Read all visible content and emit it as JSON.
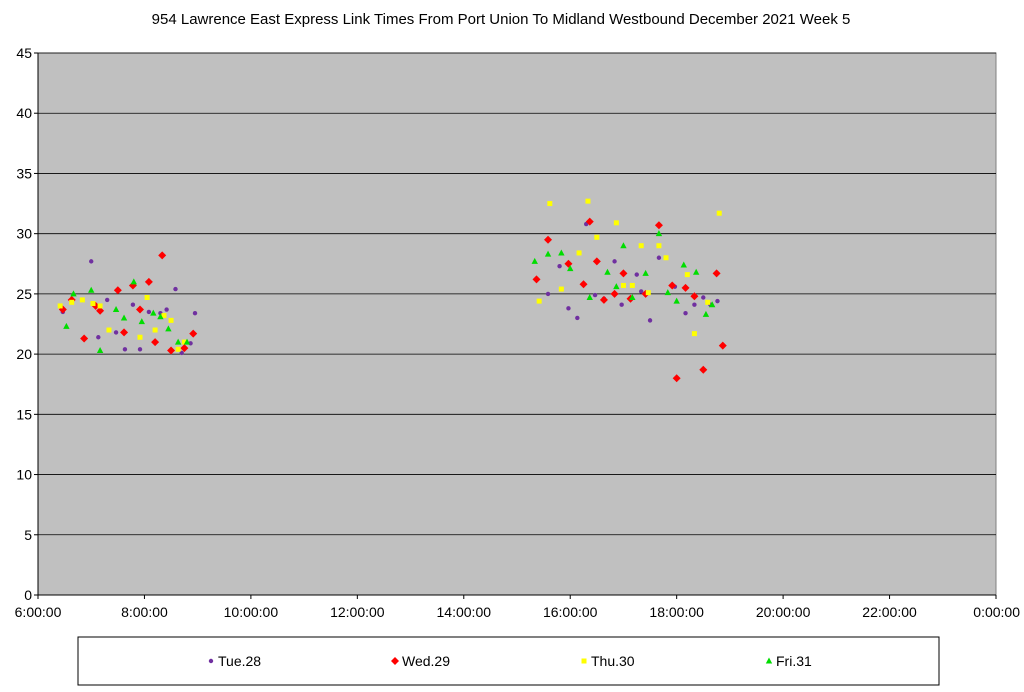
{
  "chart_data": {
    "type": "scatter",
    "title": "954 Lawrence East Express Link Times From Port Union To Midland Westbound December 2021  Week 5",
    "xlabel": "",
    "ylabel": "",
    "xlim": [
      "6:00:00",
      "0:00:00"
    ],
    "x_domain_hours": [
      6,
      24
    ],
    "x_ticks": [
      "6:00:00",
      "8:00:00",
      "10:00:00",
      "12:00:00",
      "14:00:00",
      "16:00:00",
      "18:00:00",
      "20:00:00",
      "22:00:00",
      "0:00:00"
    ],
    "ylim": [
      0,
      45
    ],
    "y_ticks": [
      "0",
      "5",
      "10",
      "15",
      "20",
      "25",
      "30",
      "35",
      "40",
      "45"
    ],
    "grid": "horizontal",
    "legend_position": "bottom",
    "plot_background": "#c0c0c0",
    "series": [
      {
        "name": "Tue.28",
        "color": "#7030a0",
        "marker": "circle",
        "points": [
          [
            "6:28",
            23.5
          ],
          [
            "6:50",
            24.5
          ],
          [
            "7:00",
            27.7
          ],
          [
            "7:08",
            21.4
          ],
          [
            "7:18",
            24.5
          ],
          [
            "7:28",
            21.8
          ],
          [
            "7:38",
            20.4
          ],
          [
            "7:47",
            24.1
          ],
          [
            "7:55",
            20.4
          ],
          [
            "8:05",
            23.5
          ],
          [
            "8:18",
            23.4
          ],
          [
            "8:25",
            23.7
          ],
          [
            "8:35",
            25.4
          ],
          [
            "8:42",
            20.1
          ],
          [
            "8:52",
            20.9
          ],
          [
            "8:57",
            23.4
          ],
          [
            "15:35",
            25.0
          ],
          [
            "15:48",
            27.3
          ],
          [
            "15:58",
            23.8
          ],
          [
            "16:08",
            23.0
          ],
          [
            "16:18",
            30.8
          ],
          [
            "16:28",
            24.9
          ],
          [
            "16:38",
            24.6
          ],
          [
            "16:50",
            27.7
          ],
          [
            "16:58",
            24.1
          ],
          [
            "17:08",
            24.6
          ],
          [
            "17:15",
            26.6
          ],
          [
            "17:20",
            25.2
          ],
          [
            "17:30",
            22.8
          ],
          [
            "17:40",
            28.0
          ],
          [
            "17:58",
            25.6
          ],
          [
            "18:10",
            23.4
          ],
          [
            "18:20",
            24.1
          ],
          [
            "18:30",
            24.7
          ],
          [
            "18:38",
            24.1
          ],
          [
            "18:46",
            24.4
          ]
        ]
      },
      {
        "name": "Wed.29",
        "color": "#ff0000",
        "marker": "diamond",
        "points": [
          [
            "6:28",
            23.7
          ],
          [
            "6:38",
            24.5
          ],
          [
            "6:52",
            21.3
          ],
          [
            "7:05",
            24.0
          ],
          [
            "7:10",
            23.6
          ],
          [
            "7:30",
            25.3
          ],
          [
            "7:37",
            21.8
          ],
          [
            "7:47",
            25.7
          ],
          [
            "7:55",
            23.7
          ],
          [
            "8:05",
            26.0
          ],
          [
            "8:12",
            21.0
          ],
          [
            "8:20",
            28.2
          ],
          [
            "8:30",
            20.3
          ],
          [
            "8:45",
            20.5
          ],
          [
            "8:55",
            21.7
          ],
          [
            "15:22",
            26.2
          ],
          [
            "15:35",
            29.5
          ],
          [
            "15:58",
            27.5
          ],
          [
            "16:15",
            25.8
          ],
          [
            "16:22",
            31.0
          ],
          [
            "16:30",
            27.7
          ],
          [
            "16:38",
            24.5
          ],
          [
            "16:50",
            25.0
          ],
          [
            "17:00",
            26.7
          ],
          [
            "17:08",
            24.6
          ],
          [
            "17:25",
            25.0
          ],
          [
            "17:40",
            30.7
          ],
          [
            "17:55",
            25.7
          ],
          [
            "18:00",
            18.0
          ],
          [
            "18:10",
            25.5
          ],
          [
            "18:20",
            24.8
          ],
          [
            "18:30",
            18.7
          ],
          [
            "18:45",
            26.7
          ],
          [
            "18:52",
            20.7
          ]
        ]
      },
      {
        "name": "Thu.30",
        "color": "#ffff00",
        "marker": "square",
        "points": [
          [
            "6:25",
            24.0
          ],
          [
            "6:38",
            24.3
          ],
          [
            "6:50",
            24.5
          ],
          [
            "7:02",
            24.2
          ],
          [
            "7:10",
            24.0
          ],
          [
            "7:20",
            22.0
          ],
          [
            "7:55",
            21.4
          ],
          [
            "8:03",
            24.7
          ],
          [
            "8:12",
            22.0
          ],
          [
            "8:22",
            23.2
          ],
          [
            "8:30",
            22.8
          ],
          [
            "8:38",
            20.4
          ],
          [
            "8:45",
            21.0
          ],
          [
            "15:25",
            24.4
          ],
          [
            "15:37",
            32.5
          ],
          [
            "15:50",
            25.4
          ],
          [
            "16:10",
            28.4
          ],
          [
            "16:20",
            32.7
          ],
          [
            "16:30",
            29.7
          ],
          [
            "16:52",
            30.9
          ],
          [
            "17:00",
            25.7
          ],
          [
            "17:10",
            25.7
          ],
          [
            "17:20",
            29.0
          ],
          [
            "17:28",
            25.1
          ],
          [
            "17:40",
            29.0
          ],
          [
            "17:48",
            28.0
          ],
          [
            "18:12",
            26.6
          ],
          [
            "18:20",
            21.7
          ],
          [
            "18:35",
            24.3
          ],
          [
            "18:48",
            31.7
          ]
        ]
      },
      {
        "name": "Fri.31",
        "color": "#00dd00",
        "marker": "triangle",
        "points": [
          [
            "6:32",
            22.3
          ],
          [
            "6:40",
            25.0
          ],
          [
            "7:00",
            25.3
          ],
          [
            "7:10",
            20.3
          ],
          [
            "7:28",
            23.7
          ],
          [
            "7:37",
            23.0
          ],
          [
            "7:48",
            26.0
          ],
          [
            "7:57",
            22.7
          ],
          [
            "8:10",
            23.4
          ],
          [
            "8:18",
            23.1
          ],
          [
            "8:27",
            22.1
          ],
          [
            "8:38",
            21.0
          ],
          [
            "8:48",
            21.0
          ],
          [
            "15:20",
            27.7
          ],
          [
            "15:35",
            28.3
          ],
          [
            "15:50",
            28.4
          ],
          [
            "16:00",
            27.1
          ],
          [
            "16:22",
            24.7
          ],
          [
            "16:42",
            26.8
          ],
          [
            "16:52",
            25.6
          ],
          [
            "17:00",
            29.0
          ],
          [
            "17:10",
            24.7
          ],
          [
            "17:25",
            26.7
          ],
          [
            "17:40",
            30.0
          ],
          [
            "17:50",
            25.1
          ],
          [
            "18:00",
            24.4
          ],
          [
            "18:08",
            27.4
          ],
          [
            "18:22",
            26.8
          ],
          [
            "18:33",
            23.3
          ],
          [
            "18:40",
            24.1
          ]
        ]
      }
    ]
  }
}
